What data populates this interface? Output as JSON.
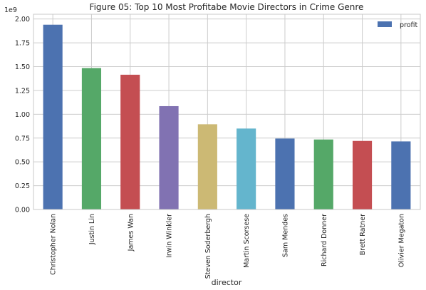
{
  "chart_data": {
    "type": "bar",
    "title": "Figure 05: Top 10 Most Profitabe Movie Directors in Crime Genre",
    "xlabel": "director",
    "ylabel": "",
    "y_offset_label": "1e9",
    "ylim": [
      0,
      2.05
    ],
    "yticks": [
      0.0,
      0.25,
      0.5,
      0.75,
      1.0,
      1.25,
      1.5,
      1.75,
      2.0
    ],
    "ytick_labels": [
      "0.00",
      "0.25",
      "0.50",
      "0.75",
      "1.00",
      "1.25",
      "1.50",
      "1.75",
      "2.00"
    ],
    "grid": true,
    "legend": {
      "position": "top-right",
      "entries": [
        "profit"
      ]
    },
    "categories": [
      "Christopher Nolan",
      "Justin Lin",
      "James Wan",
      "Irwin Winkler",
      "Steven Soderbergh",
      "Martin Scorsese",
      "Sam Mendes",
      "Richard Donner",
      "Brett Ratner",
      "Olivier Megaton"
    ],
    "series": [
      {
        "name": "profit",
        "values": [
          1.94,
          1.485,
          1.415,
          1.085,
          0.895,
          0.85,
          0.745,
          0.735,
          0.72,
          0.715
        ]
      }
    ],
    "bar_colors": [
      "#4c72b0",
      "#55a868",
      "#c44e52",
      "#8172b2",
      "#ccb974",
      "#64b5cd",
      "#4c72b0",
      "#55a868",
      "#c44e52",
      "#4c72b0"
    ]
  }
}
